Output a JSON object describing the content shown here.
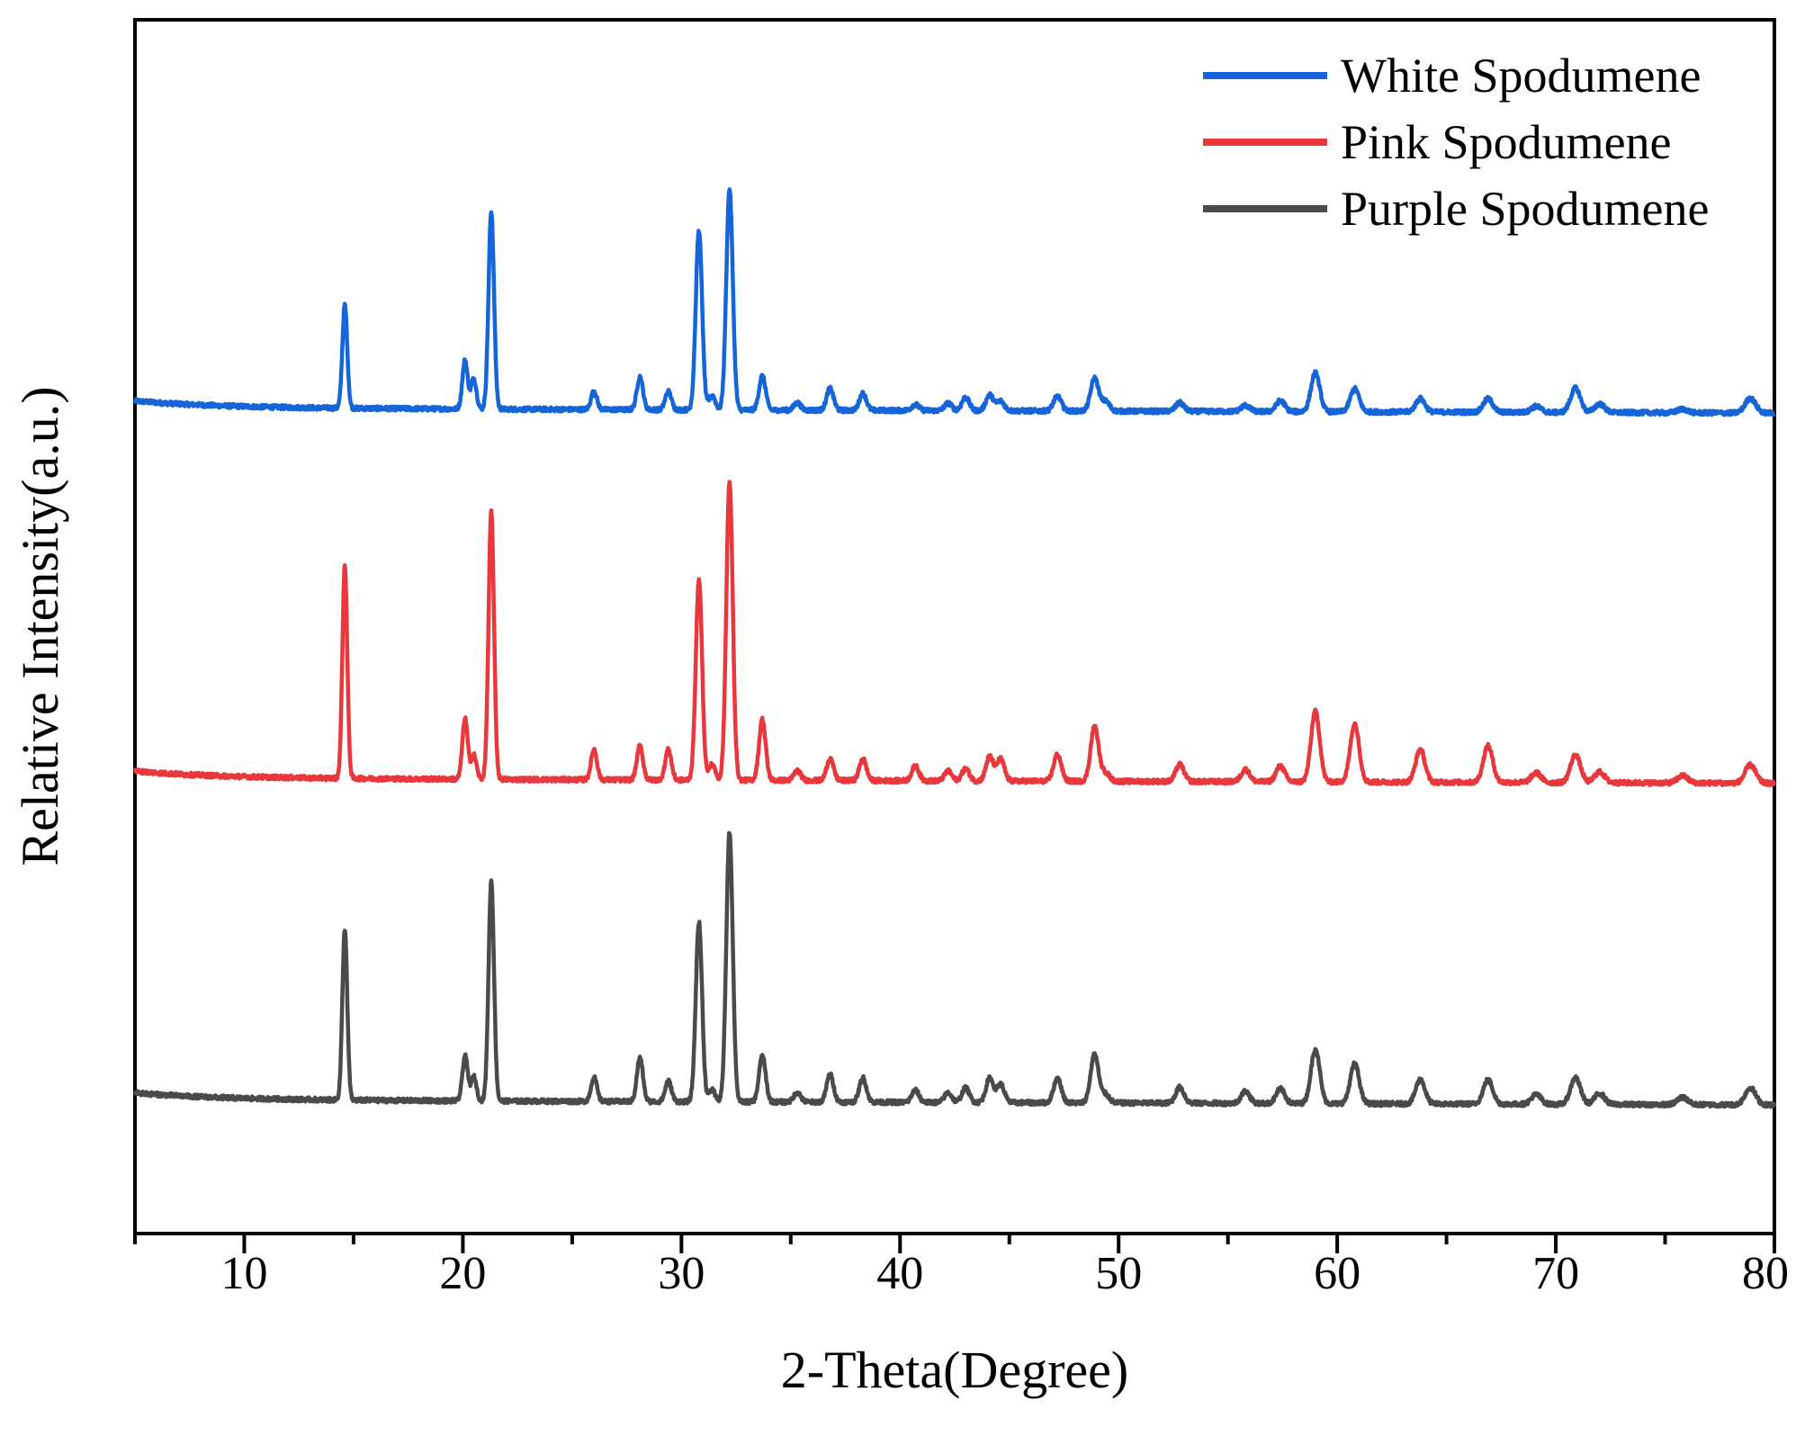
{
  "chart_data": {
    "type": "line",
    "title": "",
    "xlabel": "2-Theta(Degree)",
    "ylabel": "Relative Intensity(a.u.)",
    "xlim": [
      5,
      80
    ],
    "ylim": [
      0,
      1
    ],
    "x_ticks": [
      10,
      20,
      30,
      40,
      50,
      60,
      70,
      80
    ],
    "y_ticks": [],
    "grid": false,
    "legend_position": "top-right",
    "peaks_2theta": [
      14.6,
      20.1,
      20.5,
      21.3,
      26.0,
      28.1,
      29.4,
      30.8,
      31.4,
      32.2,
      33.7,
      35.3,
      36.8,
      38.3,
      40.7,
      42.2,
      43.0,
      44.1,
      44.6,
      47.2,
      48.9,
      49.4,
      52.8,
      55.8,
      57.4,
      59.0,
      60.8,
      63.8,
      66.9,
      69.1,
      70.9,
      72.0,
      75.8,
      78.9
    ],
    "series": [
      {
        "name": "White Spodumene",
        "color": "#1565d8",
        "baseline": 0.68,
        "intensities": [
          0.085,
          0.04,
          0.025,
          0.163,
          0.015,
          0.027,
          0.015,
          0.148,
          0.012,
          0.182,
          0.028,
          0.006,
          0.018,
          0.014,
          0.005,
          0.006,
          0.011,
          0.013,
          0.008,
          0.012,
          0.027,
          0.008,
          0.007,
          0.005,
          0.009,
          0.032,
          0.019,
          0.011,
          0.011,
          0.005,
          0.02,
          0.007,
          0.003,
          0.012
        ]
      },
      {
        "name": "Pink Spodumene",
        "color": "#e8383d",
        "baseline": 0.375,
        "intensities": [
          0.175,
          0.05,
          0.02,
          0.22,
          0.025,
          0.028,
          0.025,
          0.165,
          0.013,
          0.245,
          0.05,
          0.008,
          0.018,
          0.018,
          0.012,
          0.008,
          0.01,
          0.02,
          0.018,
          0.022,
          0.045,
          0.007,
          0.014,
          0.01,
          0.013,
          0.058,
          0.048,
          0.027,
          0.03,
          0.008,
          0.023,
          0.009,
          0.006,
          0.015
        ]
      },
      {
        "name": "Purple Spodumene",
        "color": "#4a4a4a",
        "baseline": 0.11,
        "intensities": [
          0.141,
          0.037,
          0.02,
          0.181,
          0.02,
          0.036,
          0.017,
          0.148,
          0.01,
          0.222,
          0.038,
          0.008,
          0.023,
          0.02,
          0.01,
          0.008,
          0.012,
          0.02,
          0.015,
          0.02,
          0.04,
          0.007,
          0.013,
          0.01,
          0.012,
          0.045,
          0.033,
          0.02,
          0.02,
          0.008,
          0.022,
          0.009,
          0.006,
          0.014
        ]
      }
    ]
  }
}
